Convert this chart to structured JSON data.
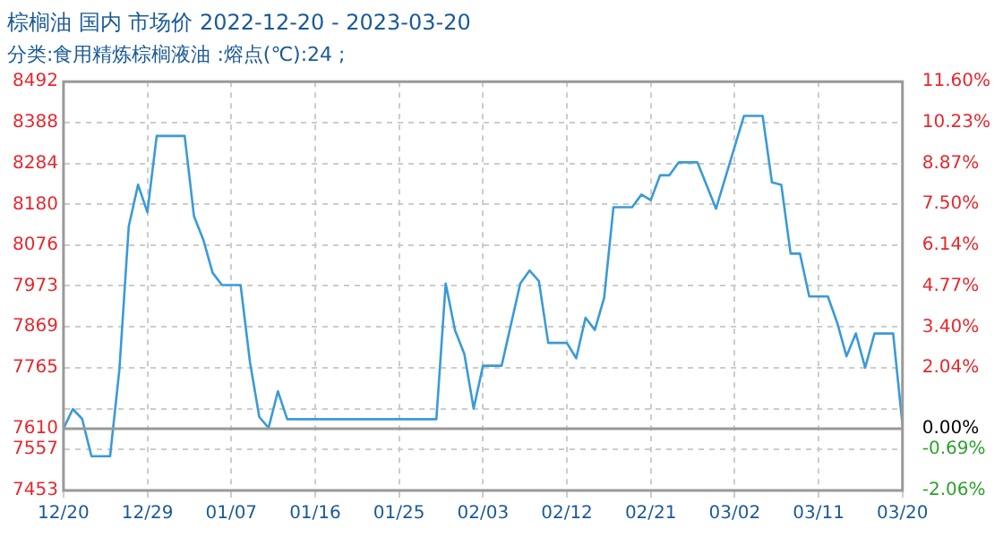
{
  "chart_data": {
    "type": "line",
    "title": "棕榈油 国内 市场价 2022-12-20 - 2023-03-20",
    "subtitle": "分类:食用精炼棕榈液油 :熔点(℃):24 ;",
    "x": [
      "2022-12-20",
      "2022-12-21",
      "2022-12-22",
      "2022-12-23",
      "2022-12-25",
      "2022-12-26",
      "2022-12-27",
      "2022-12-28",
      "2022-12-29",
      "2022-12-30",
      "2023-01-02",
      "2023-01-03",
      "2023-01-04",
      "2023-01-05",
      "2023-01-06",
      "2023-01-08",
      "2023-01-09",
      "2023-01-10",
      "2023-01-11",
      "2023-01-12",
      "2023-01-13",
      "2023-01-29",
      "2023-01-30",
      "2023-01-31",
      "2023-02-01",
      "2023-02-02",
      "2023-02-03",
      "2023-02-05",
      "2023-02-07",
      "2023-02-08",
      "2023-02-09",
      "2023-02-10",
      "2023-02-12",
      "2023-02-13",
      "2023-02-14",
      "2023-02-15",
      "2023-02-16",
      "2023-02-17",
      "2023-02-19",
      "2023-02-20",
      "2023-02-21",
      "2023-02-22",
      "2023-02-23",
      "2023-02-24",
      "2023-02-26",
      "2023-02-28",
      "2023-03-03",
      "2023-03-05",
      "2023-03-06",
      "2023-03-07",
      "2023-03-08",
      "2023-03-09",
      "2023-03-10",
      "2023-03-12",
      "2023-03-13",
      "2023-03-14",
      "2023-03-15",
      "2023-03-16",
      "2023-03-17",
      "2023-03-19",
      "2023-03-20"
    ],
    "series": [
      {
        "color": "#3a9ad9",
        "values": [
          7610,
          7660,
          7635,
          7540,
          7540,
          7761,
          8124,
          8230,
          8160,
          8354,
          8354,
          8150,
          8090,
          8006,
          7975,
          7975,
          7780,
          7640,
          7612,
          7705,
          7634,
          7634,
          7979,
          7860,
          7800,
          7661,
          7770,
          7770,
          7979,
          8012,
          7985,
          7828,
          7828,
          7789,
          7892,
          7861,
          7943,
          8173,
          8173,
          8205,
          8191,
          8254,
          8254,
          8287,
          8287,
          8169,
          8405,
          8405,
          8236,
          8230,
          8055,
          8055,
          7946,
          7946,
          7879,
          7794,
          7852,
          7765,
          7852,
          7852,
          7620
        ]
      }
    ],
    "xlim": [
      "2022-12-20",
      "2023-03-20"
    ],
    "xticks": [
      {
        "value": "2022-12-20",
        "label": "12/20"
      },
      {
        "value": "2022-12-29",
        "label": "12/29"
      },
      {
        "value": "2023-01-07",
        "label": "01/07"
      },
      {
        "value": "2023-01-16",
        "label": "01/16"
      },
      {
        "value": "2023-01-25",
        "label": "01/25"
      },
      {
        "value": "2023-02-03",
        "label": "02/03"
      },
      {
        "value": "2023-02-12",
        "label": "02/12"
      },
      {
        "value": "2023-02-21",
        "label": "02/21"
      },
      {
        "value": "2023-03-02",
        "label": "03/02"
      },
      {
        "value": "2023-03-11",
        "label": "03/11"
      },
      {
        "value": "2023-03-20",
        "label": "03/20"
      }
    ],
    "ylim": [
      7453,
      8492
    ],
    "yticks": [
      7453,
      7557,
      7610,
      {
        "value": 7661,
        "label": null
      },
      7765,
      7869,
      7973,
      8076,
      8180,
      8284,
      8388,
      8492
    ],
    "y2lim": [
      -2.06,
      11.6
    ],
    "y2ticks": [
      {
        "value": -2.06,
        "label": "-2.06%"
      },
      {
        "value": -0.69,
        "label": "-0.69%"
      },
      {
        "value": 0,
        "label": "0.00%"
      },
      {
        "value": 0.67,
        "label": null
      },
      {
        "value": 2.04,
        "label": "2.04%"
      },
      {
        "value": 3.4,
        "label": "3.40%"
      },
      {
        "value": 4.77,
        "label": "4.77%"
      },
      {
        "value": 6.14,
        "label": "6.14%"
      },
      {
        "value": 7.5,
        "label": "7.50%"
      },
      {
        "value": 8.87,
        "label": "8.87%"
      },
      {
        "value": 10.23,
        "label": "10.23%"
      },
      {
        "value": 11.6,
        "label": "11.60%"
      }
    ],
    "ref_lines": [
      {
        "axis": "y",
        "value": 7610,
        "color": "#999999"
      }
    ],
    "grid": true,
    "legend": false,
    "marker": "none",
    "line_style": "solid"
  }
}
